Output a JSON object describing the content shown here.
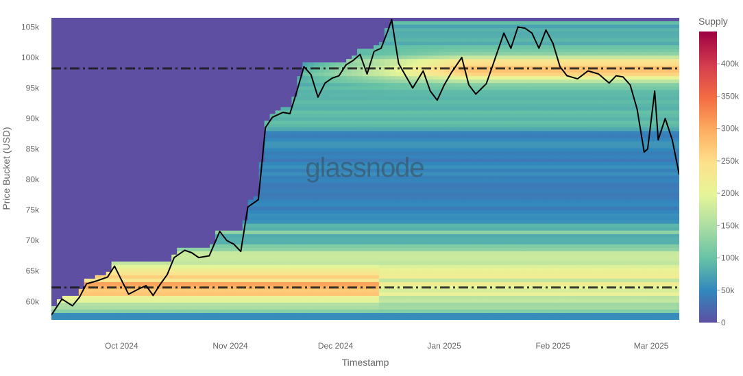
{
  "chart_data": {
    "type": "heatmap",
    "title": "",
    "xlabel": "Timestamp",
    "ylabel": "Price Bucket (USD)",
    "watermark": "glassnode",
    "colorbar": {
      "title": "Supply",
      "range": [
        0,
        450000
      ],
      "ticks": [
        0,
        50000,
        100000,
        150000,
        200000,
        250000,
        300000,
        350000,
        400000
      ],
      "tick_labels": [
        "0",
        "50k",
        "100k",
        "150k",
        "200k",
        "250k",
        "300k",
        "350k",
        "400k"
      ],
      "colors": [
        "#5e4fa2",
        "#3288bd",
        "#66c2a5",
        "#abdda4",
        "#e6f598",
        "#fee08b",
        "#fdae61",
        "#f46d43",
        "#d53e4f",
        "#9e0142"
      ]
    },
    "x_range": [
      "2024-09-11",
      "2025-03-09"
    ],
    "x_ticks": [
      {
        "date": "2024-10-01",
        "label": "Oct 2024"
      },
      {
        "date": "2024-11-01",
        "label": "Nov 2024"
      },
      {
        "date": "2024-12-01",
        "label": "Dec 2024"
      },
      {
        "date": "2025-01-01",
        "label": "Jan 2025"
      },
      {
        "date": "2025-02-01",
        "label": "Feb 2025"
      },
      {
        "date": "2025-03-01",
        "label": "Mar 2025"
      }
    ],
    "y_range": [
      57000,
      106500
    ],
    "y_ticks": [
      {
        "value": 60000,
        "label": "60k"
      },
      {
        "value": 65000,
        "label": "65k"
      },
      {
        "value": 70000,
        "label": "70k"
      },
      {
        "value": 75000,
        "label": "75k"
      },
      {
        "value": 80000,
        "label": "80k"
      },
      {
        "value": 85000,
        "label": "85k"
      },
      {
        "value": 90000,
        "label": "90k"
      },
      {
        "value": 95000,
        "label": "95k"
      },
      {
        "value": 100000,
        "label": "100k"
      },
      {
        "value": 105000,
        "label": "105k"
      }
    ],
    "reference_lines": [
      {
        "value": 98200,
        "style": "dash-dot",
        "color": "#1a1a1a"
      },
      {
        "value": 62300,
        "style": "dash-dot",
        "color": "#1a1a1a"
      }
    ],
    "price_series": {
      "color": "#000000",
      "x": [
        "2024-09-11",
        "2024-09-14",
        "2024-09-17",
        "2024-09-19",
        "2024-09-21",
        "2024-09-24",
        "2024-09-27",
        "2024-09-29",
        "2024-10-01",
        "2024-10-03",
        "2024-10-06",
        "2024-10-08",
        "2024-10-10",
        "2024-10-12",
        "2024-10-14",
        "2024-10-16",
        "2024-10-19",
        "2024-10-21",
        "2024-10-23",
        "2024-10-26",
        "2024-10-29",
        "2024-10-31",
        "2024-11-02",
        "2024-11-04",
        "2024-11-06",
        "2024-11-09",
        "2024-11-11",
        "2024-11-13",
        "2024-11-16",
        "2024-11-18",
        "2024-11-20",
        "2024-11-22",
        "2024-11-24",
        "2024-11-26",
        "2024-11-28",
        "2024-11-30",
        "2024-12-02",
        "2024-12-04",
        "2024-12-06",
        "2024-12-08",
        "2024-12-10",
        "2024-12-12",
        "2024-12-14",
        "2024-12-16",
        "2024-12-17",
        "2024-12-19",
        "2024-12-21",
        "2024-12-23",
        "2024-12-26",
        "2024-12-28",
        "2024-12-30",
        "2025-01-01",
        "2025-01-03",
        "2025-01-06",
        "2025-01-08",
        "2025-01-10",
        "2025-01-13",
        "2025-01-15",
        "2025-01-18",
        "2025-01-20",
        "2025-01-22",
        "2025-01-24",
        "2025-01-26",
        "2025-01-28",
        "2025-01-30",
        "2025-02-01",
        "2025-02-03",
        "2025-02-05",
        "2025-02-08",
        "2025-02-11",
        "2025-02-14",
        "2025-02-17",
        "2025-02-19",
        "2025-02-21",
        "2025-02-23",
        "2025-02-25",
        "2025-02-27",
        "2025-02-28",
        "2025-03-02",
        "2025-03-03",
        "2025-03-05",
        "2025-03-07",
        "2025-03-09"
      ],
      "y": [
        57800,
        60400,
        59300,
        60700,
        62900,
        63400,
        64000,
        65800,
        63500,
        61200,
        62100,
        62600,
        61000,
        62800,
        64400,
        67200,
        68400,
        68000,
        67200,
        67500,
        71500,
        70000,
        69400,
        68200,
        75500,
        76700,
        88500,
        90200,
        91000,
        90800,
        94500,
        98500,
        97200,
        93500,
        95800,
        96600,
        97000,
        98800,
        99500,
        100500,
        97300,
        101000,
        101500,
        104500,
        106200,
        99000,
        97000,
        95000,
        97800,
        94500,
        93000,
        95500,
        97500,
        100000,
        95500,
        94000,
        95700,
        99000,
        104000,
        101500,
        105000,
        104800,
        104000,
        101500,
        104500,
        102300,
        98500,
        97000,
        96500,
        97800,
        97300,
        95800,
        97000,
        96800,
        95500,
        91500,
        84500,
        85000,
        94500,
        86500,
        90000,
        86500,
        80800
      ]
    }
  }
}
